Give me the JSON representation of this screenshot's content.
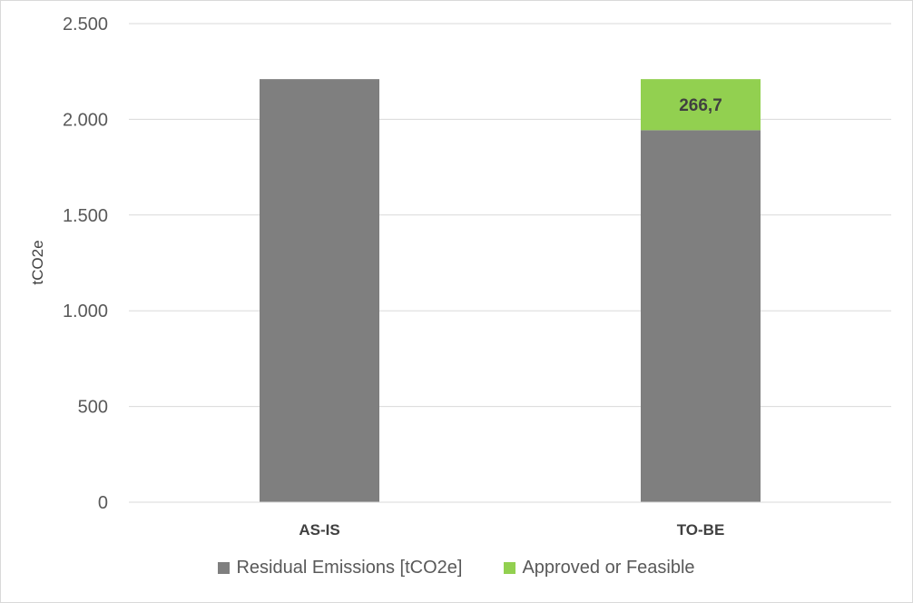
{
  "chart_data": {
    "type": "bar",
    "stacked": true,
    "categories": [
      "AS-IS",
      "TO-BE"
    ],
    "ylabel": "tCO2e",
    "ylim": [
      0,
      2500
    ],
    "yticks": [
      0,
      500,
      1000,
      1500,
      2000,
      2500
    ],
    "ytick_labels": [
      "0",
      "500",
      "1.000",
      "1.500",
      "2.000",
      "2.500"
    ],
    "grid": true,
    "legend_position": "bottom",
    "series": [
      {
        "name": "Residual Emissions [tCO2e]",
        "color": "#7f7f7f",
        "values": [
          2210,
          1943.3
        ]
      },
      {
        "name": "Approved or Feasible",
        "color": "#92d050",
        "values": [
          0,
          266.7
        ],
        "data_labels": [
          "",
          "266,7"
        ]
      }
    ]
  }
}
